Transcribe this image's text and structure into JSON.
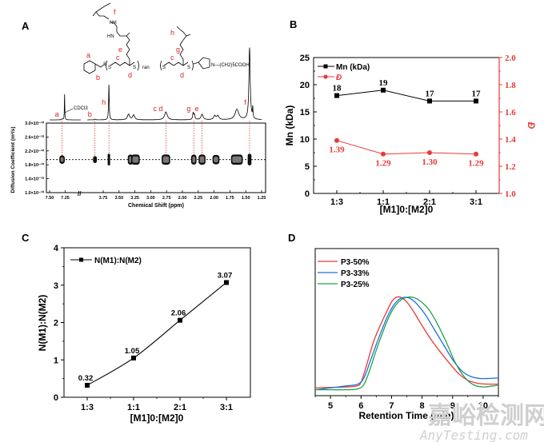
{
  "figure": {
    "watermark": {
      "line1": "嘉峪检测网",
      "line2": "AnyTesting.com"
    },
    "colors": {
      "black": "#000000",
      "red": "#e83a3a",
      "blue": "#1f6fe0",
      "green": "#22a24a",
      "guide_red": "#e02020"
    }
  },
  "chart_data": [
    {
      "panel": "A",
      "type": "scatter",
      "title": "",
      "xlabel": "Chemical Shift (ppm)",
      "ylabel": "Diffusion Coefficient (m²/s)",
      "x_ticks": [
        "7.50",
        "7.25",
        "3.75",
        "3.50",
        "3.25",
        "3.00",
        "2.75",
        "2.50",
        "2.25",
        "2.00",
        "1.75",
        "1.50",
        "1.25"
      ],
      "y_ticks": [
        "1.0×10⁻¹⁰",
        "1.4×10⁻¹⁰",
        "1.8×10⁻¹⁰",
        "2.2×10⁻¹⁰",
        "2.6×10⁻¹⁰",
        "3.0×10⁻¹⁰"
      ],
      "ylim": [
        1e-10,
        3e-10
      ],
      "axis_break": "between 7.25 and 3.75",
      "diffusion_line": 1.95e-10,
      "peaks": [
        {
          "label": "a",
          "shift": 7.3
        },
        {
          "label": "b",
          "shift": 3.88
        },
        {
          "label": "h",
          "shift": 3.66
        },
        {
          "label": "",
          "shift": 3.32
        },
        {
          "label": "",
          "shift": 3.24
        },
        {
          "label": "c d",
          "shift": 2.76
        },
        {
          "label": "g",
          "shift": 2.32
        },
        {
          "label": "e",
          "shift": 2.19
        },
        {
          "label": "",
          "shift": 1.97
        },
        {
          "label": "",
          "shift": 1.64
        },
        {
          "label": "f",
          "shift": 1.44
        }
      ],
      "annotation": "CDCl3",
      "structure_labels": [
        "a",
        "b",
        "c",
        "d",
        "e",
        "f",
        "g",
        "h"
      ],
      "structure_text": {
        "ran": "ran",
        "tail": "N—(CH2)5COOH",
        "nh1": "NH",
        "nh2": "HN"
      }
    },
    {
      "panel": "B",
      "type": "line",
      "title": "",
      "categories": [
        "1:3",
        "1:1",
        "2:1",
        "3:1"
      ],
      "xlabel": "[M1]0:[M2]0",
      "ylabel": "Mn (kDa)",
      "ylabel_right": "Đ",
      "ylim": [
        0,
        25
      ],
      "ylim_right": [
        1.0,
        2.0
      ],
      "y_ticks": [
        "0",
        "5",
        "10",
        "15",
        "20",
        "25"
      ],
      "y_ticks_right": [
        "1.0",
        "1.2",
        "1.4",
        "1.6",
        "1.8",
        "2.0"
      ],
      "legend_position": "top-left",
      "series": [
        {
          "name": "Mn (kDa)",
          "axis": "left",
          "color": "#000000",
          "marker": "square",
          "values": [
            18,
            19,
            17,
            17
          ],
          "labels": [
            "18",
            "19",
            "17",
            "17"
          ]
        },
        {
          "name": "Đ",
          "axis": "right",
          "color": "#e83a3a",
          "marker": "circle",
          "values": [
            1.39,
            1.29,
            1.3,
            1.29
          ],
          "labels": [
            "1.39",
            "1.29",
            "1.30",
            "1.29"
          ]
        }
      ]
    },
    {
      "panel": "C",
      "type": "line",
      "title": "",
      "categories": [
        "1:3",
        "1:1",
        "2:1",
        "3:1"
      ],
      "xlabel": "[M1]0:[M2]0",
      "ylabel": "N(M1):N(M2)",
      "ylim": [
        0,
        4
      ],
      "y_ticks": [
        "0",
        "1",
        "2",
        "3",
        "4"
      ],
      "legend_position": "top-left",
      "series": [
        {
          "name": "N(M1):N(M2)",
          "color": "#000000",
          "marker": "square",
          "values": [
            0.32,
            1.05,
            2.06,
            3.07
          ],
          "labels": [
            "0.32",
            "1.05",
            "2.06",
            "3.07"
          ]
        }
      ]
    },
    {
      "panel": "D",
      "type": "line",
      "title": "",
      "xlabel": "Retention Time (min)",
      "ylabel": "",
      "xlim": [
        4.5,
        10.5
      ],
      "x_ticks": [
        "5",
        "6",
        "7",
        "8",
        "9",
        "10"
      ],
      "legend_position": "top-left",
      "series": [
        {
          "name": "P3-50%",
          "color": "#e83a3a",
          "x": [
            4.5,
            5.0,
            5.5,
            5.85,
            6.0,
            6.2,
            6.4,
            6.6,
            6.8,
            7.0,
            7.15,
            7.3,
            7.5,
            7.7,
            8.0,
            8.3,
            8.6,
            8.9,
            9.2,
            9.5,
            9.8,
            10.1,
            10.5
          ],
          "y": [
            0.04,
            0.045,
            0.05,
            0.06,
            0.1,
            0.3,
            0.52,
            0.68,
            0.82,
            0.95,
            1.0,
            1.0,
            0.95,
            0.86,
            0.7,
            0.55,
            0.42,
            0.3,
            0.19,
            0.12,
            0.09,
            0.08,
            0.08
          ]
        },
        {
          "name": "P3-33%",
          "color": "#1f6fe0",
          "x": [
            4.5,
            5.0,
            5.5,
            5.9,
            6.1,
            6.3,
            6.5,
            6.7,
            6.9,
            7.1,
            7.3,
            7.45,
            7.6,
            7.8,
            8.1,
            8.4,
            8.7,
            9.0,
            9.3,
            9.6,
            9.9,
            10.2,
            10.5
          ],
          "y": [
            0.02,
            0.04,
            0.06,
            0.08,
            0.15,
            0.32,
            0.5,
            0.67,
            0.82,
            0.93,
            0.99,
            1.0,
            0.99,
            0.94,
            0.82,
            0.66,
            0.5,
            0.34,
            0.22,
            0.16,
            0.14,
            0.14,
            0.145
          ]
        },
        {
          "name": "P3-25%",
          "color": "#22a24a",
          "x": [
            4.5,
            5.0,
            5.5,
            5.9,
            6.1,
            6.3,
            6.5,
            6.7,
            6.9,
            7.1,
            7.3,
            7.5,
            7.7,
            7.9,
            8.2,
            8.5,
            8.8,
            9.1,
            9.4,
            9.7,
            10.0,
            10.3,
            10.5
          ],
          "y": [
            0.02,
            0.02,
            0.02,
            0.03,
            0.08,
            0.24,
            0.44,
            0.62,
            0.78,
            0.9,
            0.97,
            1.0,
            1.0,
            0.97,
            0.88,
            0.72,
            0.52,
            0.3,
            0.15,
            0.07,
            0.05,
            0.06,
            0.07
          ]
        }
      ]
    }
  ]
}
